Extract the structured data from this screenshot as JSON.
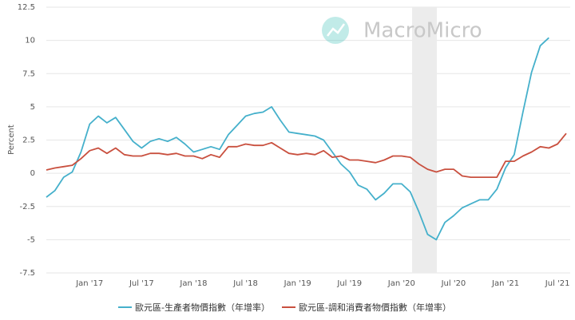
{
  "chart_data": {
    "type": "line",
    "watermark": "MacroMicro",
    "y_label": "Percent",
    "categories": [
      null,
      null,
      null,
      null,
      null,
      "Jan '17",
      null,
      null,
      null,
      null,
      null,
      "Jul '17",
      null,
      null,
      null,
      null,
      null,
      "Jan '18",
      null,
      null,
      null,
      null,
      null,
      "Jul '18",
      null,
      null,
      null,
      null,
      null,
      "Jan '19",
      null,
      null,
      null,
      null,
      null,
      "Jul '19",
      null,
      null,
      null,
      null,
      null,
      "Jan '20",
      null,
      null,
      null,
      null,
      null,
      "Jul '20",
      null,
      null,
      null,
      null,
      null,
      "Jan '21",
      null,
      null,
      null,
      null,
      null,
      "Jul '21",
      null
    ],
    "series": [
      {
        "name": "歐元區-生產者物價指數（年增率）",
        "color": "#45b0cb",
        "values": [
          -1.8,
          -1.3,
          -0.3,
          0.1,
          1.6,
          3.7,
          4.3,
          3.8,
          4.2,
          3.3,
          2.4,
          1.9,
          2.4,
          2.6,
          2.4,
          2.7,
          2.2,
          1.6,
          1.8,
          2.0,
          1.8,
          2.9,
          3.6,
          4.3,
          4.5,
          4.6,
          5.0,
          4.0,
          3.1,
          3.0,
          2.9,
          2.8,
          2.5,
          1.6,
          0.7,
          0.1,
          -0.9,
          -1.2,
          -2.0,
          -1.5,
          -0.8,
          -0.8,
          -1.4,
          -2.9,
          -4.6,
          -5.0,
          -3.7,
          -3.2,
          -2.6,
          -2.3,
          -2.0,
          -2.0,
          -1.2,
          0.4,
          1.4,
          4.6,
          7.6,
          9.6,
          10.2,
          null,
          null
        ]
      },
      {
        "name": "歐元區-調和消費者物價指數（年增率）",
        "color": "#c9503f",
        "values": [
          0.25,
          0.4,
          0.5,
          0.6,
          1.1,
          1.7,
          1.9,
          1.5,
          1.9,
          1.4,
          1.3,
          1.3,
          1.5,
          1.5,
          1.4,
          1.5,
          1.3,
          1.3,
          1.1,
          1.4,
          1.2,
          2.0,
          2.0,
          2.2,
          2.1,
          2.1,
          2.3,
          1.9,
          1.5,
          1.4,
          1.5,
          1.4,
          1.7,
          1.2,
          1.3,
          1.0,
          1.0,
          0.9,
          0.8,
          1.0,
          1.3,
          1.3,
          1.2,
          0.7,
          0.3,
          0.1,
          0.3,
          0.3,
          -0.2,
          -0.3,
          -0.3,
          -0.3,
          -0.3,
          0.9,
          0.9,
          1.3,
          1.6,
          2.0,
          1.9,
          2.2,
          3.0
        ]
      }
    ],
    "ylim": [
      -7.5,
      12.5
    ],
    "yticks": [
      -7.5,
      -5,
      -2.5,
      0,
      2.5,
      5,
      7.5,
      10,
      12.5
    ],
    "grid": true
  }
}
